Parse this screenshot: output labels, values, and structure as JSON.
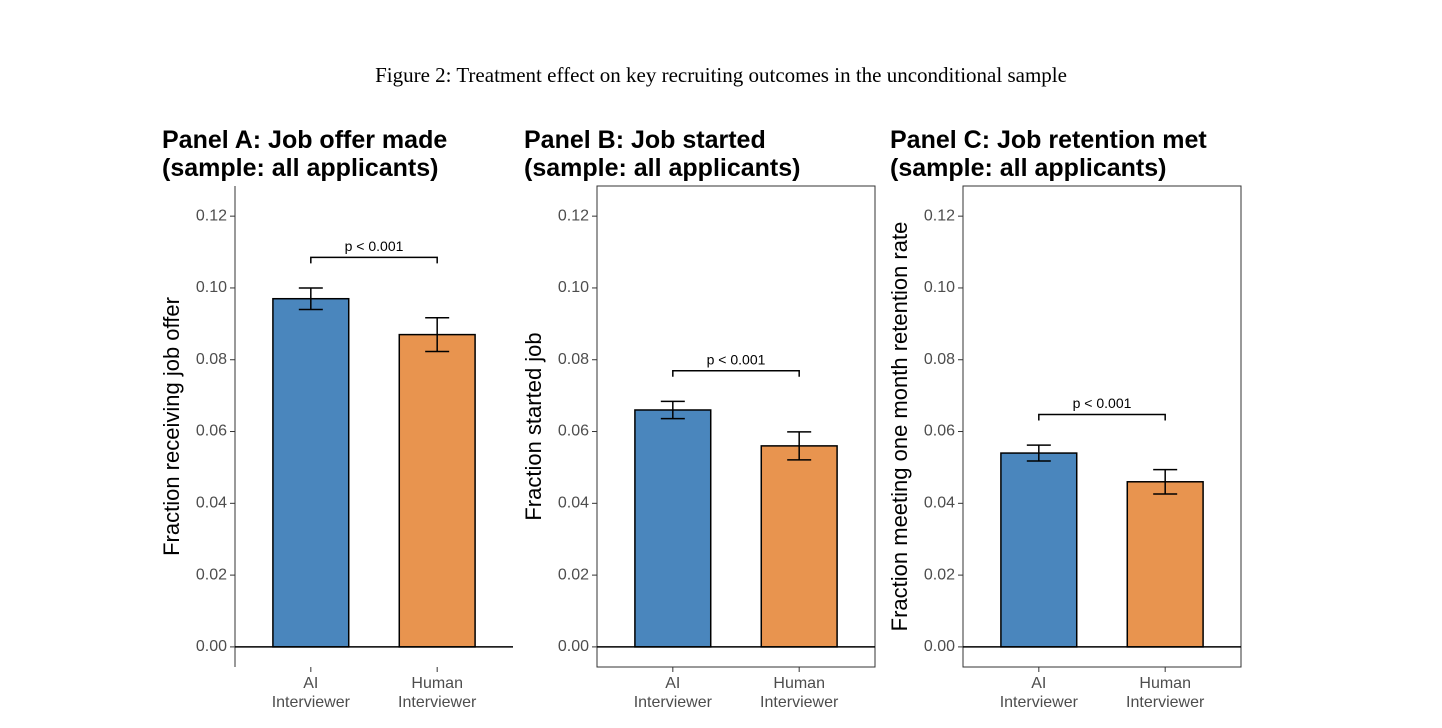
{
  "caption": "Figure 2: Treatment effect on key recruiting outcomes in the unconditional sample",
  "chart_data": [
    {
      "type": "bar",
      "title": [
        "Panel A: Job offer made",
        "(sample: all applicants)"
      ],
      "y_label": "Fraction receiving job offer",
      "frame": false,
      "categories": [
        "AI Interviewer",
        "Human Interviewer"
      ],
      "values": [
        0.097,
        0.087
      ],
      "errors": [
        0.003,
        0.0047
      ],
      "colors": [
        "#4a86bd",
        "#e8944f"
      ],
      "annotation": "p < 0.001",
      "ylim": [
        -0.0056,
        0.1284
      ],
      "yticks": [
        {
          "value": 0,
          "label": "0.00"
        },
        {
          "value": 0.02,
          "label": "0.02"
        },
        {
          "value": 0.04,
          "label": "0.04"
        },
        {
          "value": 0.06,
          "label": "0.06"
        },
        {
          "value": 0.08,
          "label": "0.08"
        },
        {
          "value": 0.1,
          "label": "0.10"
        },
        {
          "value": 0.12,
          "label": "0.12"
        }
      ]
    },
    {
      "type": "bar",
      "title": [
        "Panel B: Job started",
        "(sample: all applicants)"
      ],
      "y_label": "Fraction started job",
      "frame": true,
      "categories": [
        "AI Interviewer",
        "Human Interviewer"
      ],
      "values": [
        0.066,
        0.056
      ],
      "errors": [
        0.0024,
        0.0039
      ],
      "colors": [
        "#4a86bd",
        "#e8944f"
      ],
      "annotation": "p < 0.001",
      "ylim": [
        -0.0056,
        0.1284
      ],
      "yticks": [
        {
          "value": 0,
          "label": "0.00"
        },
        {
          "value": 0.02,
          "label": "0.02"
        },
        {
          "value": 0.04,
          "label": "0.04"
        },
        {
          "value": 0.06,
          "label": "0.06"
        },
        {
          "value": 0.08,
          "label": "0.08"
        },
        {
          "value": 0.1,
          "label": "0.10"
        },
        {
          "value": 0.12,
          "label": "0.12"
        }
      ]
    },
    {
      "type": "bar",
      "title": [
        "Panel C: Job retention met",
        "(sample: all applicants)"
      ],
      "y_label": "Fraction meeting one month retention rate",
      "frame": true,
      "categories": [
        "AI Interviewer",
        "Human Interviewer"
      ],
      "values": [
        0.054,
        0.046
      ],
      "errors": [
        0.0022,
        0.0034
      ],
      "colors": [
        "#4a86bd",
        "#e8944f"
      ],
      "annotation": "p < 0.001",
      "ylim": [
        -0.0056,
        0.1284
      ],
      "yticks": [
        {
          "value": 0,
          "label": "0.00"
        },
        {
          "value": 0.02,
          "label": "0.02"
        },
        {
          "value": 0.04,
          "label": "0.04"
        },
        {
          "value": 0.06,
          "label": "0.06"
        },
        {
          "value": 0.08,
          "label": "0.08"
        },
        {
          "value": 0.1,
          "label": "0.10"
        },
        {
          "value": 0.12,
          "label": "0.12"
        }
      ]
    }
  ]
}
